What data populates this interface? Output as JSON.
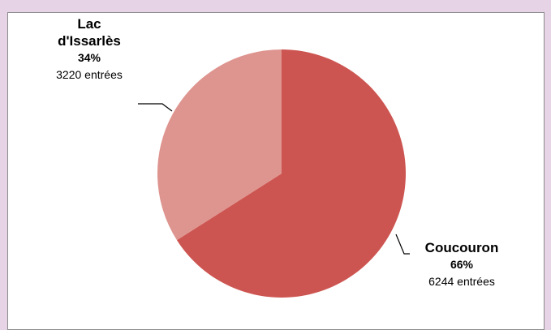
{
  "chart_data": {
    "type": "pie",
    "slices": [
      {
        "name": "Coucouron",
        "percent_label": "66%",
        "count_label": "6244 entrées",
        "value": 6244,
        "color": "#cd5551"
      },
      {
        "name": "Lac d'Issarlès",
        "name_lines": [
          "Lac",
          "d'Issarlès"
        ],
        "percent_label": "34%",
        "count_label": "3220 entrées",
        "value": 3220,
        "color": "#de948f"
      }
    ]
  }
}
